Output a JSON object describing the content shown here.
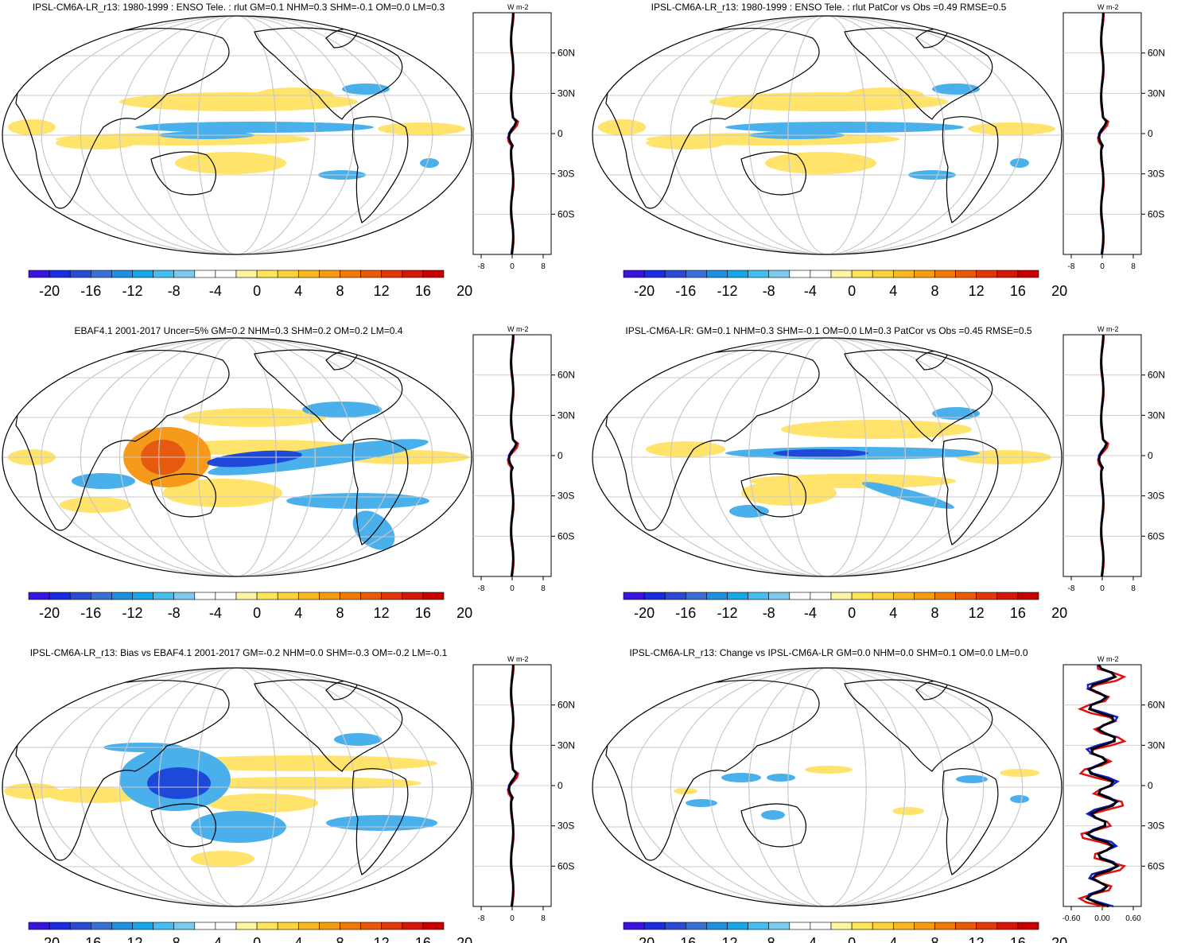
{
  "colors": {
    "scale": [
      "#3a14dc",
      "#1b2be0",
      "#2a4cd4",
      "#3a6fd8",
      "#1f8fe0",
      "#17a7e8",
      "#45bdf0",
      "#7ccaee",
      "#ffffff",
      "#ffffff",
      "#fff5a0",
      "#ffe55a",
      "#fdd23c",
      "#fbb820",
      "#f79b10",
      "#ef7a08",
      "#e85a08",
      "#e03808",
      "#d41808",
      "#c80000"
    ],
    "warm": [
      "#fff3a0",
      "#ffe36a",
      "#fbc538",
      "#f59a1a",
      "#e65a10"
    ],
    "cool": [
      "#8fd0f0",
      "#49b0ec",
      "#2a7fe0",
      "#1e48d8",
      "#2516c8"
    ],
    "land": "#000000",
    "grid": "#c8c8c8",
    "profile_model": "#e01010",
    "profile_obs": "#1020d0",
    "profile_mean": "#000000"
  },
  "colorbar_labels": [
    "-20",
    "-16",
    "-12",
    "-8",
    "-4",
    "0",
    "4",
    "8",
    "12",
    "16",
    "20"
  ],
  "panels": [
    {
      "id": "p1",
      "title": "IPSL-CM6A-LR_r13: 1980-1999 : ENSO Tele. : rlut GM=0.1 NHM=0.3 SHM=-0.1 OM=0.0 LM=0.3",
      "units": "W m-2",
      "lat_labels": [
        "60N",
        "30N",
        "0",
        "30S",
        "60S"
      ],
      "profile_ticks": [
        "-8",
        "0",
        "8"
      ]
    },
    {
      "id": "p2",
      "title": "IPSL-CM6A-LR_r13: 1980-1999 : ENSO Tele. : rlut PatCor vs Obs =0.49 RMSE=0.5",
      "units": "W m-2",
      "lat_labels": [
        "60N",
        "30N",
        "0",
        "30S",
        "60S"
      ],
      "profile_ticks": [
        "-8",
        "0",
        "8"
      ]
    },
    {
      "id": "p3",
      "title": "EBAF4.1 2001-2017 Uncer=5% GM=0.2 NHM=0.3 SHM=0.2 OM=0.2 LM=0.4",
      "units": "W m-2",
      "lat_labels": [
        "60N",
        "30N",
        "0",
        "30S",
        "60S"
      ],
      "profile_ticks": [
        "-8",
        "0",
        "8"
      ]
    },
    {
      "id": "p4",
      "title": "IPSL-CM6A-LR: GM=0.1 NHM=0.3 SHM=-0.1 OM=0.0 LM=0.3 PatCor vs Obs =0.45 RMSE=0.5",
      "units": "W m-2",
      "lat_labels": [
        "60N",
        "30N",
        "0",
        "30S",
        "60S"
      ],
      "profile_ticks": [
        "-8",
        "0",
        "8"
      ]
    },
    {
      "id": "p5",
      "title": "IPSL-CM6A-LR_r13: Bias vs EBAF4.1 2001-2017 GM=-0.2 NHM=0.0 SHM=-0.3 OM=-0.2 LM=-0.1",
      "units": "W m-2",
      "lat_labels": [
        "60N",
        "30N",
        "0",
        "30S",
        "60S"
      ],
      "profile_ticks": [
        "-8",
        "0",
        "8"
      ]
    },
    {
      "id": "p6",
      "title": "IPSL-CM6A-LR_r13: Change vs IPSL-CM6A-LR GM=0.0 NHM=0.0 SHM=0.1 OM=0.0 LM=0.0",
      "units": "W m-2",
      "lat_labels": [
        "60N",
        "30N",
        "0",
        "30S",
        "60S"
      ],
      "profile_ticks": [
        "-0.60",
        "0.00",
        "0.60"
      ]
    }
  ]
}
